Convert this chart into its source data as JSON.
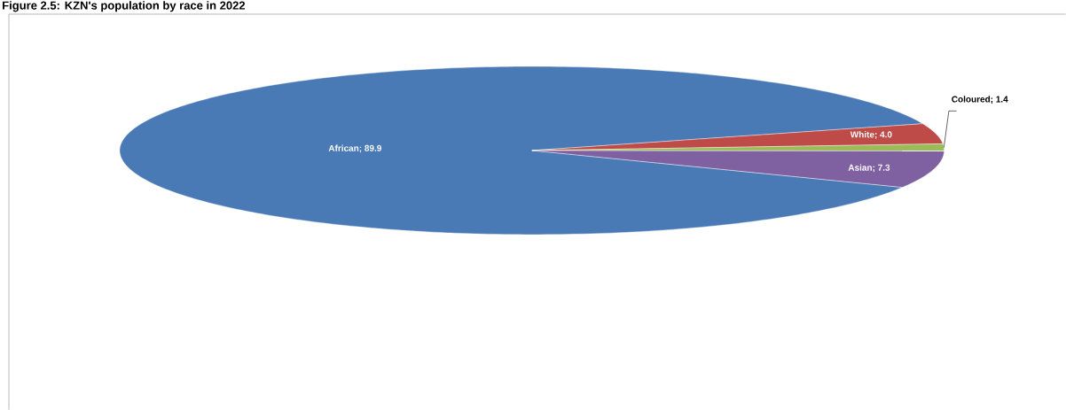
{
  "chart_data": {
    "type": "pie",
    "title": "Figure 2.5: KZN's population by race in 2022",
    "categories": [
      "African",
      "White",
      "Coloured",
      "Asian"
    ],
    "values": [
      89.9,
      4.0,
      1.4,
      7.3
    ],
    "value_labels": [
      "; 89.9",
      "; 4.0",
      "; 1.4",
      "; 7.3"
    ],
    "colors": [
      "#4a7ab5",
      "#be4b48",
      "#9bbb59",
      "#7f60a0"
    ],
    "legend": false
  }
}
